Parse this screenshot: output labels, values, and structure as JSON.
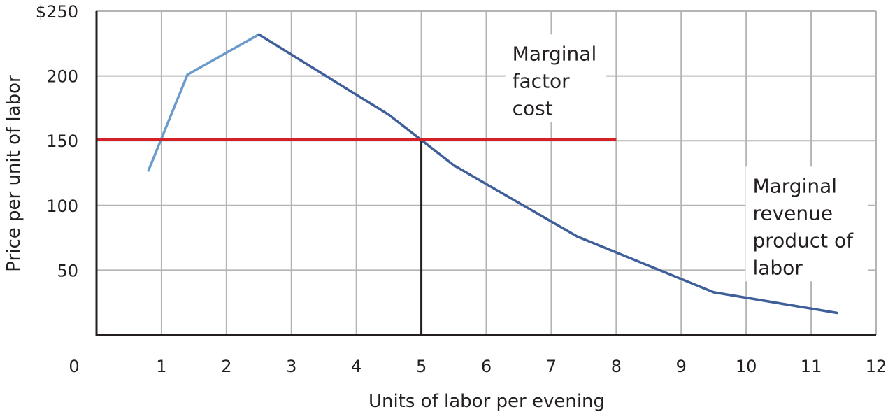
{
  "chart_data": {
    "type": "line",
    "xlabel": "Units of labor per evening",
    "ylabel": "Price per unit of labor",
    "xlim": [
      0,
      12
    ],
    "ylim": [
      0,
      250
    ],
    "x_ticks": [
      0,
      1,
      2,
      3,
      4,
      5,
      6,
      7,
      8,
      9,
      10,
      11,
      12
    ],
    "x_tick_labels": [
      "0",
      "1",
      "2",
      "3",
      "4",
      "5",
      "6",
      "7",
      "8",
      "9",
      "10",
      "11",
      "12"
    ],
    "y_ticks": [
      50,
      100,
      150,
      200,
      250
    ],
    "y_tick_labels": [
      "50",
      "100",
      "150",
      "200",
      "$250"
    ],
    "grid": true,
    "series": [
      {
        "name": "Marginal revenue product of labor",
        "color": "#3f5f9b",
        "rising_color": "#6b9bcb",
        "points": [
          [
            0.8,
            127
          ],
          [
            1.4,
            201
          ],
          [
            2.5,
            232
          ],
          [
            4.5,
            170
          ],
          [
            5.5,
            131
          ],
          [
            7.4,
            76
          ],
          [
            9.5,
            33
          ],
          [
            11.4,
            17
          ]
        ]
      },
      {
        "name": "Marginal factor cost",
        "color": "#d42027",
        "points": [
          [
            0,
            151
          ],
          [
            8,
            151
          ]
        ]
      }
    ],
    "annotations": [
      {
        "series": "Marginal factor cost",
        "lines": [
          "Marginal",
          "factor",
          "cost"
        ],
        "x": 6.4,
        "y": 212
      },
      {
        "series": "Marginal revenue product of labor",
        "lines": [
          "Marginal",
          "revenue",
          "product of",
          "labor"
        ],
        "x": 10.1,
        "y": 110
      }
    ],
    "reference_lines": [
      {
        "from": [
          5,
          0
        ],
        "to": [
          5,
          151
        ],
        "color": "#231f20"
      }
    ]
  }
}
